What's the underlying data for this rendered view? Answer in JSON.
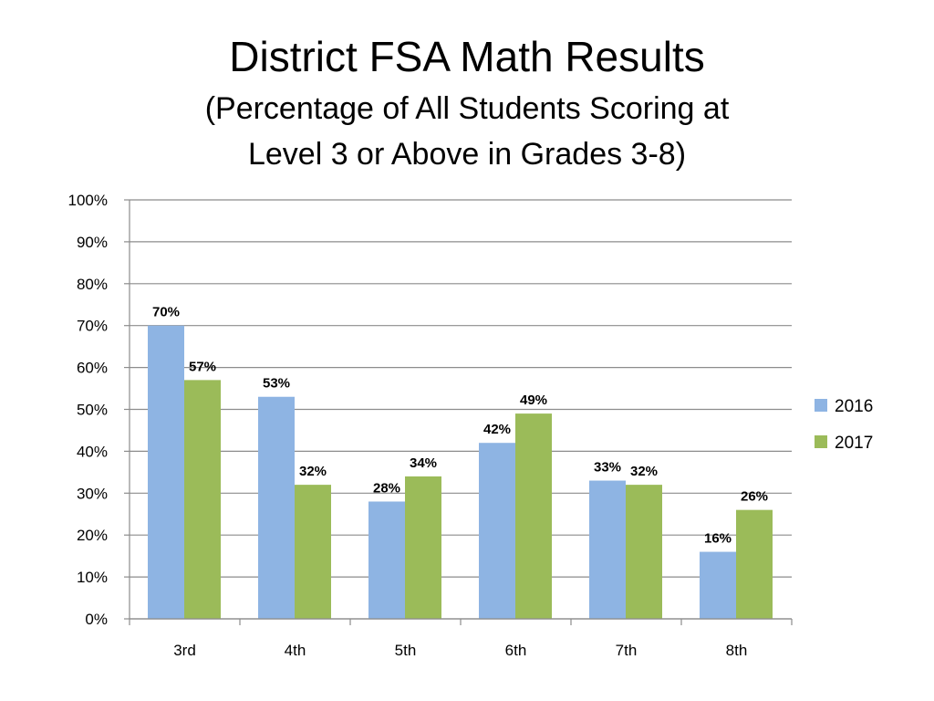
{
  "chart_data": {
    "type": "bar",
    "title": "District FSA Math Results",
    "subtitle_lines": [
      "(Percentage of All Students Scoring at",
      "Level 3 or Above in Grades 3-8)"
    ],
    "categories": [
      "3rd",
      "4th",
      "5th",
      "6th",
      "7th",
      "8th"
    ],
    "series": [
      {
        "name": "2016",
        "color": "#8eb4e3",
        "values": [
          70,
          53,
          28,
          42,
          33,
          16
        ],
        "labels": [
          "70%",
          "53%",
          "28%",
          "42%",
          "33%",
          "16%"
        ]
      },
      {
        "name": "2017",
        "color": "#9bbb59",
        "values": [
          57,
          32,
          34,
          49,
          32,
          26
        ],
        "labels": [
          "57%",
          "32%",
          "34%",
          "49%",
          "32%",
          "26%"
        ]
      }
    ],
    "ylim": [
      0,
      100
    ],
    "yticks": [
      0,
      10,
      20,
      30,
      40,
      50,
      60,
      70,
      80,
      90,
      100
    ],
    "ytick_labels": [
      "0%",
      "10%",
      "20%",
      "30%",
      "40%",
      "50%",
      "60%",
      "70%",
      "80%",
      "90%",
      "100%"
    ],
    "grid": true,
    "legend_position": "right"
  }
}
